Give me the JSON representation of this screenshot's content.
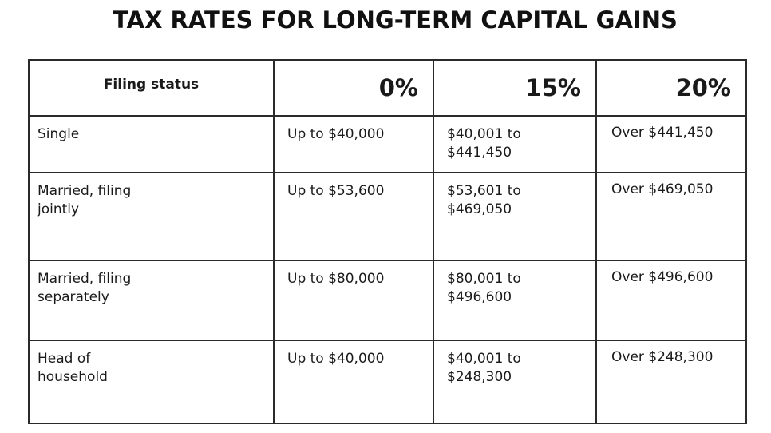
{
  "title": "TAX RATES FOR LONG-TERM CAPITAL GAINS",
  "table": {
    "headers": {
      "filing_status": "Filing status",
      "rate_0": "0%",
      "rate_15": "15%",
      "rate_20": "20%"
    },
    "rows": [
      {
        "status_line1": "Single",
        "status_line2": "",
        "rate_0": "Up to $40,000",
        "rate_15_line1": "$40,001 to",
        "rate_15_line2": "$441,450",
        "rate_20": "Over $441,450"
      },
      {
        "status_line1": "Married, filing",
        "status_line2": "jointly",
        "rate_0": "Up to $53,600",
        "rate_15_line1": "$53,601 to",
        "rate_15_line2": "$469,050",
        "rate_20": "Over $469,050"
      },
      {
        "status_line1": "Married, filing",
        "status_line2": "separately",
        "rate_0": "Up to $80,000",
        "rate_15_line1": "$80,001 to",
        "rate_15_line2": "$496,600",
        "rate_20": "Over $496,600"
      },
      {
        "status_line1": "Head of",
        "status_line2": "household",
        "rate_0": "Up to $40,000",
        "rate_15_line1": "$40,001 to",
        "rate_15_line2": "$248,300",
        "rate_20": "Over $248,300"
      }
    ]
  }
}
